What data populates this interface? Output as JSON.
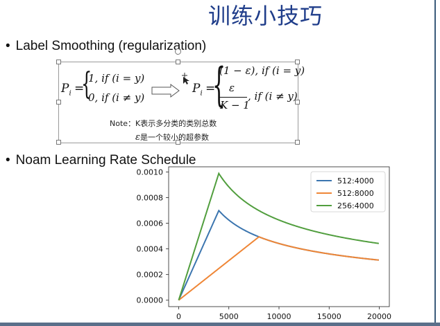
{
  "slide": {
    "title": "训练小技巧",
    "bullet1": "Label Smoothing (regularization)",
    "bullet2": "Noam Learning Rate Schedule",
    "bullet_char": "•"
  },
  "formula": {
    "left_p": "P",
    "left_sub": "i",
    "eq": "=",
    "left_case1": "1, if (i = y)",
    "left_case2": "0, if (i ≠ y)",
    "right_p": "P",
    "right_sub": "i",
    "right_eq": "=",
    "right_case1": "(1 − ε), if (i = y)",
    "right_frac_num": "ε",
    "right_frac_den": "K − 1",
    "right_case2_cond": ", if (i ≠ y)",
    "note1": "Note：K表示多分类的类别总数",
    "note2_eps": "ε",
    "note2": "是一个较小的超参数"
  },
  "chart_data": {
    "type": "line",
    "x_ticks": [
      0,
      5000,
      10000,
      15000,
      20000
    ],
    "y_ticks": [
      "0.0000",
      "0.0002",
      "0.0004",
      "0.0006",
      "0.0008",
      "0.0010"
    ],
    "xlim": [
      -1000,
      21000
    ],
    "ylim": [
      -5e-05,
      0.00104
    ],
    "legend_position": "top-right",
    "series": [
      {
        "name": "512:4000",
        "d_model": 512,
        "warmup": 4000,
        "color": "#3b75af"
      },
      {
        "name": "512:8000",
        "d_model": 512,
        "warmup": 8000,
        "color": "#ef8636"
      },
      {
        "name": "256:4000",
        "d_model": 256,
        "warmup": 4000,
        "color": "#519e3e"
      }
    ],
    "x_start": 1,
    "x_end": 20000
  }
}
